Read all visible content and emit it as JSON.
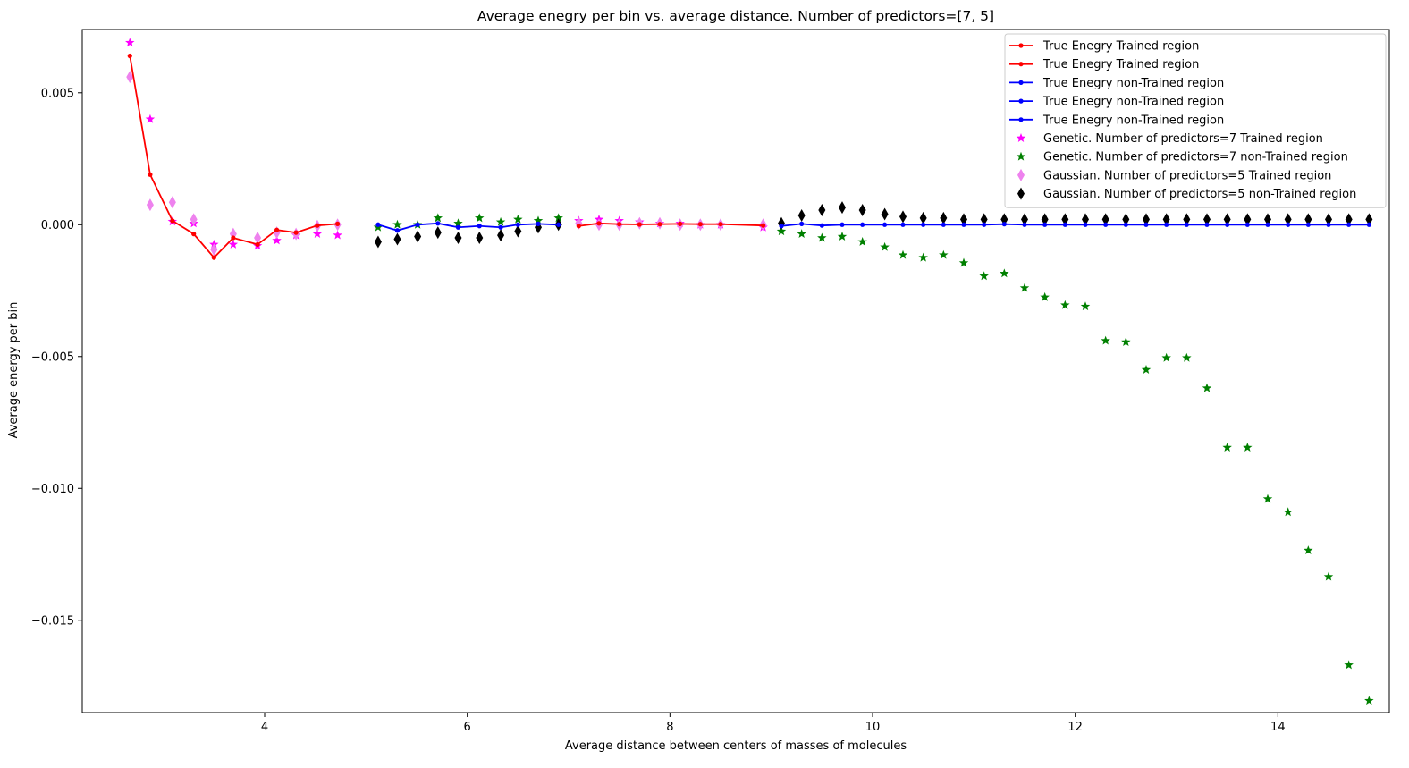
{
  "chart_data": {
    "type": "scatter",
    "title": "Average enegry per bin vs. average distance. Number of predictors=[7, 5]",
    "xlabel": "Average distance between centers of masses of molecules",
    "ylabel": "Average energy per bin",
    "xlim": [
      2.2,
      15.1
    ],
    "ylim": [
      -0.0185,
      0.0074
    ],
    "xticks": [
      4,
      6,
      8,
      10,
      12,
      14
    ],
    "xtick_labels": [
      "4",
      "6",
      "8",
      "10",
      "12",
      "14"
    ],
    "yticks": [
      0.005,
      0.0,
      -0.005,
      -0.01,
      -0.015
    ],
    "ytick_labels": [
      "0.005",
      "0.000",
      "−0.005",
      "−0.010",
      "−0.015"
    ],
    "grid": false,
    "legend_position": "top-right",
    "series": [
      {
        "name": "True Enegry Trained region",
        "kind": "line",
        "color": "#ff0000",
        "marker": "dot",
        "x": [
          2.67,
          2.87,
          3.09,
          3.3,
          3.5,
          3.69,
          3.93,
          4.12,
          4.31,
          4.52,
          4.72
        ],
        "y": [
          0.0064,
          0.0019,
          0.00015,
          -0.00035,
          -0.00125,
          -0.0005,
          -0.00075,
          -0.0002,
          -0.0003,
          -3e-05,
          3e-05
        ]
      },
      {
        "name": "True Enegry Trained region",
        "kind": "line",
        "color": "#ff0000",
        "marker": "dot",
        "x": [
          7.1,
          7.3,
          7.5,
          7.7,
          7.9,
          8.1,
          8.3,
          8.5,
          8.92
        ],
        "y": [
          -5e-05,
          5e-05,
          2e-05,
          1e-05,
          2e-05,
          3e-05,
          2e-05,
          2e-05,
          -3e-05
        ]
      },
      {
        "name": "True Enegry non-Trained region",
        "kind": "line",
        "color": "#0000ff",
        "marker": "dot",
        "x": [
          5.12,
          5.31,
          5.51,
          5.71,
          5.91,
          6.12,
          6.33,
          6.5,
          6.7,
          6.9
        ],
        "y": [
          0.0,
          -0.00022,
          0.0,
          5e-05,
          -0.0001,
          -5e-05,
          -0.0001,
          0.0,
          3e-05,
          0.0
        ]
      },
      {
        "name": "True Enegry non-Trained region",
        "kind": "line",
        "color": "#0000ff",
        "marker": "dot",
        "x": [
          9.1,
          9.3,
          9.5,
          9.7,
          9.9,
          10.12,
          10.3,
          10.5,
          10.7,
          10.9,
          11.1,
          11.3,
          11.5,
          11.7,
          11.9,
          12.1,
          12.3,
          12.5,
          12.7,
          12.9,
          13.1,
          13.3,
          13.5,
          13.7,
          13.9,
          14.1,
          14.3,
          14.5,
          14.7,
          14.9
        ],
        "y": [
          -5e-05,
          3e-05,
          -3e-05,
          0.0,
          0.0,
          0.0,
          0.0,
          0.0,
          0.0,
          0.0,
          0.0,
          2e-05,
          0.0,
          0.0,
          0.0,
          0.0,
          0.0,
          0.0,
          0.0,
          0.0,
          0.0,
          0.0,
          0.0,
          0.0,
          0.0,
          0.0,
          0.0,
          0.0,
          0.0,
          0.0
        ]
      },
      {
        "name": "True Enegry non-Trained region",
        "kind": "legend-only",
        "color": "#0000ff",
        "marker": "dot",
        "x": [],
        "y": []
      },
      {
        "name": "Genetic. Number of predictors=7 Trained region",
        "kind": "scatter",
        "color": "#ff00ff",
        "marker": "star",
        "x": [
          2.67,
          2.87,
          3.09,
          3.3,
          3.5,
          3.69,
          3.93,
          4.12,
          4.31,
          4.52,
          4.72,
          7.1,
          7.3,
          7.5,
          7.7,
          7.9,
          8.1,
          8.3,
          8.5,
          8.92
        ],
        "y": [
          0.0069,
          0.004,
          0.00012,
          5e-05,
          -0.00075,
          -0.00075,
          -0.0008,
          -0.0006,
          -0.0004,
          -0.00035,
          -0.0004,
          0.00015,
          0.0002,
          0.00015,
          0.0001,
          5e-05,
          5e-05,
          0.0,
          0.0,
          -0.0001
        ]
      },
      {
        "name": "Genetic. Number of predictors=7 non-Trained region",
        "kind": "scatter",
        "color": "#008000",
        "marker": "star",
        "x": [
          5.12,
          5.31,
          5.51,
          5.71,
          5.91,
          6.12,
          6.33,
          6.5,
          6.7,
          6.9,
          9.1,
          9.3,
          9.5,
          9.7,
          9.9,
          10.12,
          10.3,
          10.5,
          10.7,
          10.9,
          11.1,
          11.3,
          11.5,
          11.7,
          11.9,
          12.1,
          12.3,
          12.5,
          12.7,
          12.9,
          13.1,
          13.3,
          13.5,
          13.7,
          13.9,
          14.1,
          14.3,
          14.5,
          14.7,
          14.9
        ],
        "y": [
          -0.0001,
          0.0,
          0.0,
          0.00025,
          5e-05,
          0.00025,
          0.0001,
          0.0002,
          0.00015,
          0.00025,
          -0.00025,
          -0.00035,
          -0.0005,
          -0.00045,
          -0.00065,
          -0.00085,
          -0.00115,
          -0.00125,
          -0.00115,
          -0.00145,
          -0.00195,
          -0.00185,
          -0.0024,
          -0.00275,
          -0.00305,
          -0.0031,
          -0.0044,
          -0.00445,
          -0.0055,
          -0.00505,
          -0.00505,
          -0.0062,
          -0.00845,
          -0.00845,
          -0.0104,
          -0.0109,
          -0.01235,
          -0.01335,
          -0.0167,
          -0.01805
        ]
      },
      {
        "name": "Gaussian. Number of predictors=5 Trained region",
        "kind": "scatter",
        "color": "#ee82ee",
        "marker": "thin_diamond",
        "x": [
          2.67,
          2.87,
          3.09,
          3.3,
          3.5,
          3.69,
          3.93,
          4.12,
          4.31,
          4.52,
          4.72,
          7.1,
          7.3,
          7.5,
          7.7,
          7.9,
          8.1,
          8.3,
          8.5,
          8.92
        ],
        "y": [
          0.0056,
          0.00075,
          0.00085,
          0.0002,
          -0.00095,
          -0.00035,
          -0.0005,
          -0.0003,
          -0.00035,
          -5e-05,
          0.0,
          5e-05,
          0.0,
          0.0,
          5e-05,
          5e-05,
          0.0,
          0.0,
          0.0,
          0.0
        ]
      },
      {
        "name": "Gaussian. Number of predictors=5 non-Trained region",
        "kind": "scatter",
        "color": "#000000",
        "marker": "thin_diamond",
        "x": [
          5.12,
          5.31,
          5.51,
          5.71,
          5.91,
          6.12,
          6.33,
          6.5,
          6.7,
          6.9,
          9.1,
          9.3,
          9.5,
          9.7,
          9.9,
          10.12,
          10.3,
          10.5,
          10.7,
          10.9,
          11.1,
          11.3,
          11.5,
          11.7,
          11.9,
          12.1,
          12.3,
          12.5,
          12.7,
          12.9,
          13.1,
          13.3,
          13.5,
          13.7,
          13.9,
          14.1,
          14.3,
          14.5,
          14.7,
          14.9
        ],
        "y": [
          -0.00065,
          -0.00055,
          -0.00045,
          -0.0003,
          -0.0005,
          -0.0005,
          -0.0004,
          -0.00025,
          -0.0001,
          0.0,
          5e-05,
          0.00035,
          0.00055,
          0.00065,
          0.00055,
          0.0004,
          0.0003,
          0.00025,
          0.00025,
          0.0002,
          0.0002,
          0.0002,
          0.0002,
          0.0002,
          0.0002,
          0.0002,
          0.0002,
          0.0002,
          0.0002,
          0.0002,
          0.0002,
          0.0002,
          0.0002,
          0.0002,
          0.0002,
          0.0002,
          0.0002,
          0.0002,
          0.0002,
          0.0002
        ]
      }
    ]
  }
}
